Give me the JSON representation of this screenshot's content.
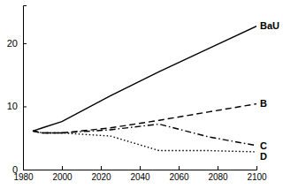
{
  "chart_data": {
    "type": "line",
    "x": [
      1985,
      1990,
      2000,
      2025,
      2050,
      2075,
      2100
    ],
    "series": [
      {
        "name": "BaU",
        "color": "#000000",
        "line_style": "solid",
        "values": [
          6.1,
          6.6,
          7.6,
          11.7,
          15.5,
          19.1,
          22.7
        ]
      },
      {
        "name": "B",
        "color": "#000000",
        "line_style": "dashed",
        "values": [
          6.1,
          5.8,
          5.8,
          6.6,
          7.8,
          9.1,
          10.4
        ]
      },
      {
        "name": "C",
        "color": "#000000",
        "line_style": "dashdot",
        "values": [
          6.1,
          5.8,
          5.8,
          6.3,
          7.2,
          5.2,
          3.8
        ]
      },
      {
        "name": "D",
        "color": "#000000",
        "line_style": "dotted",
        "values": [
          6.1,
          5.8,
          5.8,
          5.3,
          3.0,
          3.0,
          2.8
        ]
      }
    ],
    "xlim": [
      1980,
      2100
    ],
    "xticks": [
      1980,
      2000,
      2020,
      2040,
      2060,
      2080,
      2100
    ],
    "ylim": [
      0,
      26
    ],
    "yticks": [
      0,
      10,
      20
    ],
    "grid": false
  }
}
